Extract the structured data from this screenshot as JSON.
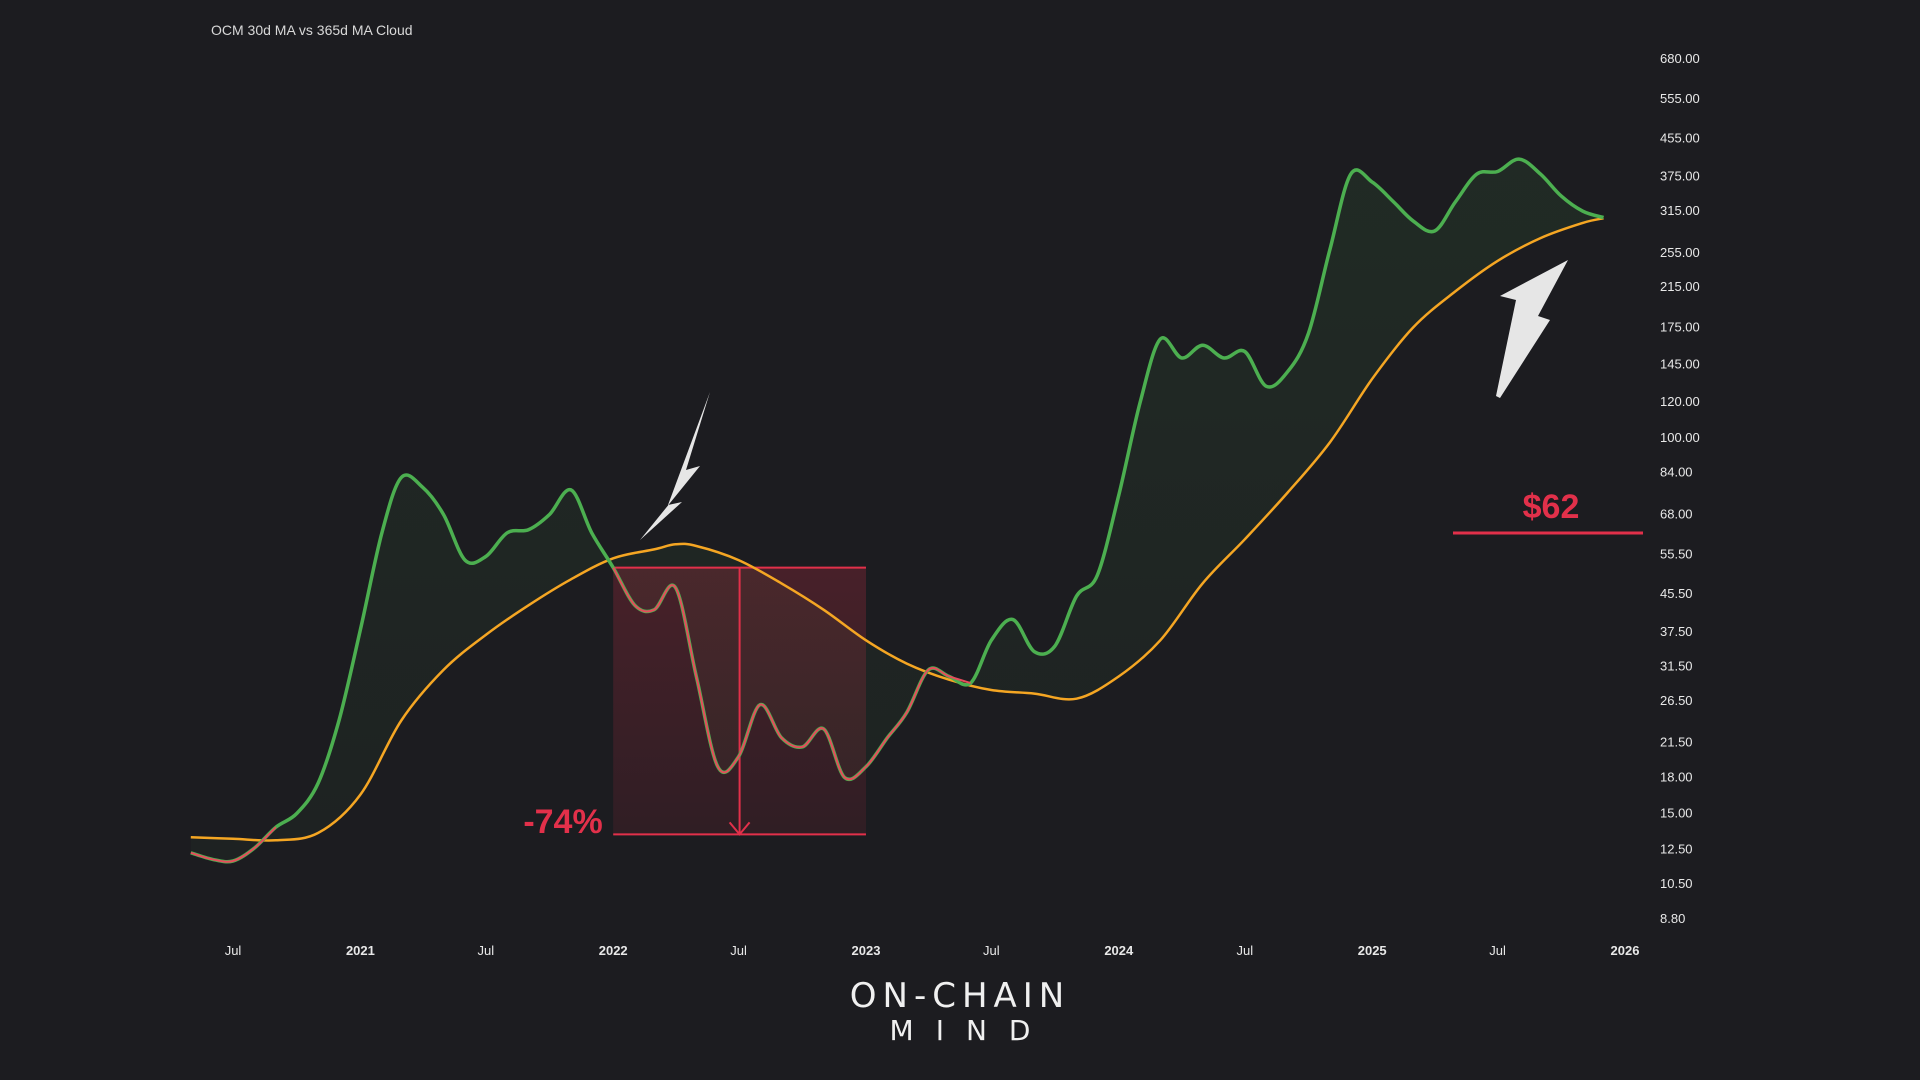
{
  "chart_data": {
    "type": "line",
    "title": "OCM 30d MA vs 365d MA Cloud",
    "y_scale": "log",
    "ylim": [
      8,
      1000
    ],
    "y_ticks": [
      "8.80",
      "10.50",
      "12.50",
      "15.00",
      "18.00",
      "21.50",
      "26.50",
      "31.50",
      "37.50",
      "45.50",
      "55.50",
      "68.00",
      "84.00",
      "100.00",
      "120.00",
      "145.00",
      "175.00",
      "215.00",
      "255.00",
      "315.00",
      "375.00",
      "455.00",
      "555.00",
      "680.00"
    ],
    "x_ticks": [
      {
        "label": "Jul",
        "date": "2020-07-01",
        "bold": false
      },
      {
        "label": "2021",
        "date": "2021-01-01",
        "bold": true
      },
      {
        "label": "Jul",
        "date": "2021-07-01",
        "bold": false
      },
      {
        "label": "2022",
        "date": "2022-01-01",
        "bold": true
      },
      {
        "label": "Jul",
        "date": "2022-07-01",
        "bold": false
      },
      {
        "label": "2023",
        "date": "2023-01-01",
        "bold": true
      },
      {
        "label": "Jul",
        "date": "2023-07-01",
        "bold": false
      },
      {
        "label": "2024",
        "date": "2024-01-01",
        "bold": true
      },
      {
        "label": "Jul",
        "date": "2024-07-01",
        "bold": false
      },
      {
        "label": "2025",
        "date": "2025-01-01",
        "bold": true
      },
      {
        "label": "Jul",
        "date": "2025-07-01",
        "bold": false
      },
      {
        "label": "2026",
        "date": "2026-01-01",
        "bold": true
      }
    ],
    "series": [
      {
        "key": "ma30",
        "color_up": "#4caf50",
        "color_down": "#e74c5c",
        "points": [
          [
            "2020-05-01",
            12.3
          ],
          [
            "2020-06-01",
            11.9
          ],
          [
            "2020-07-01",
            11.8
          ],
          [
            "2020-08-01",
            12.6
          ],
          [
            "2020-09-01",
            14.0
          ],
          [
            "2020-10-01",
            15.0
          ],
          [
            "2020-11-01",
            17.5
          ],
          [
            "2020-12-01",
            24
          ],
          [
            "2021-01-01",
            38
          ],
          [
            "2021-02-01",
            62
          ],
          [
            "2021-03-01",
            82
          ],
          [
            "2021-04-01",
            78
          ],
          [
            "2021-05-01",
            68
          ],
          [
            "2021-06-01",
            54
          ],
          [
            "2021-07-01",
            55
          ],
          [
            "2021-08-01",
            62
          ],
          [
            "2021-09-01",
            63
          ],
          [
            "2021-10-01",
            68
          ],
          [
            "2021-11-01",
            77
          ],
          [
            "2021-12-01",
            62
          ],
          [
            "2022-01-01",
            52
          ],
          [
            "2022-02-01",
            43
          ],
          [
            "2022-03-01",
            42
          ],
          [
            "2022-04-01",
            47
          ],
          [
            "2022-05-01",
            30
          ],
          [
            "2022-06-01",
            19
          ],
          [
            "2022-07-01",
            20
          ],
          [
            "2022-08-01",
            26
          ],
          [
            "2022-09-01",
            22
          ],
          [
            "2022-10-01",
            21
          ],
          [
            "2022-11-01",
            23
          ],
          [
            "2022-12-01",
            18
          ],
          [
            "2023-01-01",
            19
          ],
          [
            "2023-02-01",
            22
          ],
          [
            "2023-03-01",
            25
          ],
          [
            "2023-04-01",
            31
          ],
          [
            "2023-05-01",
            30
          ],
          [
            "2023-06-01",
            29
          ],
          [
            "2023-07-01",
            36
          ],
          [
            "2023-08-01",
            40
          ],
          [
            "2023-09-01",
            34
          ],
          [
            "2023-10-01",
            35
          ],
          [
            "2023-11-01",
            45
          ],
          [
            "2023-12-01",
            50
          ],
          [
            "2024-01-01",
            75
          ],
          [
            "2024-02-01",
            120
          ],
          [
            "2024-03-01",
            165
          ],
          [
            "2024-04-01",
            150
          ],
          [
            "2024-05-01",
            160
          ],
          [
            "2024-06-01",
            150
          ],
          [
            "2024-07-01",
            155
          ],
          [
            "2024-08-01",
            130
          ],
          [
            "2024-09-01",
            140
          ],
          [
            "2024-10-01",
            170
          ],
          [
            "2024-11-01",
            260
          ],
          [
            "2024-12-01",
            380
          ],
          [
            "2025-01-01",
            365
          ],
          [
            "2025-02-01",
            330
          ],
          [
            "2025-03-01",
            300
          ],
          [
            "2025-04-01",
            285
          ],
          [
            "2025-05-01",
            330
          ],
          [
            "2025-06-01",
            380
          ],
          [
            "2025-07-01",
            385
          ],
          [
            "2025-08-01",
            410
          ],
          [
            "2025-09-01",
            380
          ],
          [
            "2025-10-01",
            340
          ],
          [
            "2025-11-01",
            315
          ],
          [
            "2025-12-01",
            305
          ]
        ]
      },
      {
        "key": "ma365",
        "color_up": "#f5a623",
        "color_down": "#f06a2c",
        "points": [
          [
            "2020-05-01",
            13.3
          ],
          [
            "2020-07-01",
            13.2
          ],
          [
            "2020-09-01",
            13.1
          ],
          [
            "2020-11-01",
            13.6
          ],
          [
            "2021-01-01",
            16.5
          ],
          [
            "2021-03-01",
            24
          ],
          [
            "2021-05-01",
            31
          ],
          [
            "2021-07-01",
            37
          ],
          [
            "2021-09-01",
            43
          ],
          [
            "2021-11-01",
            49
          ],
          [
            "2022-01-01",
            54.5
          ],
          [
            "2022-03-01",
            57
          ],
          [
            "2022-04-01",
            58.5
          ],
          [
            "2022-05-01",
            58
          ],
          [
            "2022-07-01",
            54
          ],
          [
            "2022-09-01",
            48
          ],
          [
            "2022-11-01",
            42
          ],
          [
            "2023-01-01",
            36
          ],
          [
            "2023-03-01",
            32
          ],
          [
            "2023-05-01",
            29.5
          ],
          [
            "2023-07-01",
            28
          ],
          [
            "2023-09-01",
            27.5
          ],
          [
            "2023-11-01",
            26.8
          ],
          [
            "2024-01-01",
            30
          ],
          [
            "2024-03-01",
            36
          ],
          [
            "2024-05-01",
            48
          ],
          [
            "2024-07-01",
            60
          ],
          [
            "2024-09-01",
            76
          ],
          [
            "2024-11-01",
            98
          ],
          [
            "2025-01-01",
            135
          ],
          [
            "2025-03-01",
            175
          ],
          [
            "2025-05-01",
            210
          ],
          [
            "2025-07-01",
            245
          ],
          [
            "2025-09-01",
            275
          ],
          [
            "2025-11-01",
            297
          ],
          [
            "2025-12-01",
            304
          ]
        ]
      }
    ],
    "drawdown_label": "-74%",
    "drawdown": {
      "from_date": "2022-01-01",
      "to_date": "2023-01-01",
      "top": 52,
      "bottom": 13.5
    },
    "price_level": {
      "label": "$62",
      "value": 62
    },
    "colors": {
      "background": "#1c1c20",
      "green": "#4caf50",
      "red": "#e2304a",
      "orange": "#f5a623",
      "arrow": "#e6e6e6"
    }
  },
  "brand": {
    "line1": "ON-CHAIN",
    "line2": "MIND"
  }
}
